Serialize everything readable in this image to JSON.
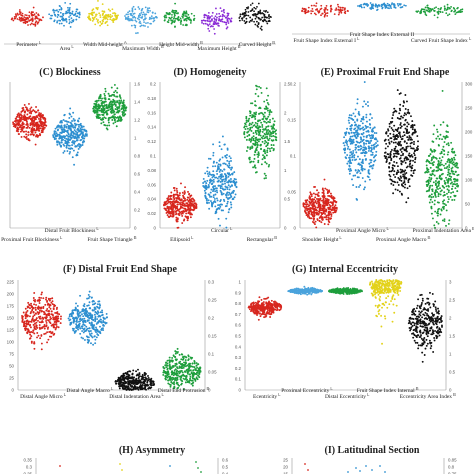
{
  "colors": {
    "red": "#d7261e",
    "blue": "#2d8fd0",
    "green": "#1e9e3c",
    "black": "#111111",
    "yellow": "#e3d21a",
    "purple": "#8a2bd6",
    "lightblue": "#4aa3dc"
  },
  "chart_data": [
    {
      "type": "scatter",
      "panel": "A",
      "title": "",
      "categories": [
        "Perimeter",
        "Area",
        "Width Mid-height",
        "Maximum Width",
        "Height Mid-width",
        "Maximum Height",
        "Curved Height"
      ],
      "category_marks": [
        "L",
        "L",
        "A",
        "B",
        "B",
        "B",
        "B"
      ],
      "colors": [
        "red",
        "blue",
        "yellow",
        "lightblue",
        "green",
        "purple",
        "black"
      ],
      "center": [
        0.55,
        0.62,
        0.6,
        0.58,
        0.55,
        0.5,
        0.56
      ],
      "spread": [
        0.18,
        0.22,
        0.18,
        0.22,
        0.2,
        0.22,
        0.24
      ],
      "ylim": [
        0,
        1
      ]
    },
    {
      "type": "scatter",
      "panel": "B",
      "title": "",
      "categories": [
        "Fruit Shape Index External I",
        "Fruit Shape Index External II",
        "Curved Fruit Shape Index"
      ],
      "category_marks": [
        "L",
        "",
        "L"
      ],
      "colors": [
        "red",
        "blue",
        "green"
      ],
      "center": [
        0.65,
        0.8,
        0.65
      ],
      "spread": [
        0.18,
        0.1,
        0.15
      ],
      "ylim": [
        0,
        1
      ]
    },
    {
      "type": "scatter",
      "panel": "C",
      "title": "(C) Blockiness",
      "categories": [
        "Proximal Fruit Blockiness",
        "Distal Fruit Blockiness",
        "Fruit Shape Triangle"
      ],
      "category_marks": [
        "L",
        "L",
        "B"
      ],
      "colors": [
        "red",
        "blue",
        "green"
      ],
      "center": [
        0.72,
        0.64,
        0.82
      ],
      "spread": [
        0.09,
        0.1,
        0.1
      ],
      "ylim": [
        0,
        1.0
      ],
      "ylim2": [
        0,
        1.6
      ],
      "yticks": [
        "1",
        "0.8",
        "0.6",
        "0.4",
        "0.2",
        "0"
      ],
      "yticks2": [
        "1.6",
        "1.4",
        "1.2",
        "1",
        "0.8",
        "0.6",
        "0.4",
        "0.2",
        "0"
      ]
    },
    {
      "type": "scatter",
      "panel": "D",
      "title": "(D) Homogeneity",
      "categories": [
        "Ellipsoid",
        "Circular",
        "Rectangular"
      ],
      "category_marks": [
        "L",
        "L",
        "B"
      ],
      "colors": [
        "red",
        "blue",
        "green"
      ],
      "center": [
        0.03,
        0.06,
        0.13
      ],
      "spread": [
        0.018,
        0.04,
        0.04
      ],
      "ylim": [
        0,
        0.2
      ],
      "ylim2": [
        0,
        2.5
      ],
      "yticks": [
        "0.2",
        "0.18",
        "0.16",
        "0.14",
        "0.12",
        "0.1",
        "0.08",
        "0.06",
        "0.04",
        "0.02",
        "0"
      ],
      "yticks2": [
        "2.5",
        "2",
        "1.5",
        "1",
        "0.5",
        "0"
      ]
    },
    {
      "type": "scatter",
      "panel": "E",
      "title": "(E) Proximal Fruit End Shape",
      "categories": [
        "Shoulder Height",
        "Proximal Angle Micro",
        "Proximal Angle Macro",
        "Proximal Indentation Area"
      ],
      "category_marks": [
        "L",
        "L",
        "B",
        "B"
      ],
      "colors": [
        "red",
        "blue",
        "black",
        "green"
      ],
      "center": [
        0.03,
        0.115,
        0.11,
        0.07
      ],
      "spread": [
        0.02,
        0.045,
        0.05,
        0.05
      ],
      "ylim": [
        0,
        0.2
      ],
      "yticks": [
        "0.2",
        "0.15",
        "0.1",
        "0.05",
        "0"
      ],
      "yticks2": [
        "300",
        "250",
        "200",
        "150",
        "100",
        "50",
        "0"
      ]
    },
    {
      "type": "scatter",
      "panel": "F",
      "title": "(F) Distal Fruit End Shape",
      "categories": [
        "Distal Angle Micro",
        "Distal Angle Macro",
        "Distal Indentation Area",
        "Distal End Protrusion"
      ],
      "category_marks": [
        "L",
        "L",
        "L",
        "B"
      ],
      "colors": [
        "red",
        "blue",
        "black",
        "green"
      ],
      "center": [
        145,
        145,
        15,
        38
      ],
      "spread": [
        40,
        35,
        18,
        30
      ],
      "ylim": [
        0,
        225
      ],
      "yticks": [
        "225",
        "200",
        "175",
        "150",
        "125",
        "100",
        "75",
        "50",
        "25",
        "0"
      ],
      "yticks2": [
        "0.3",
        "0.25",
        "0.2",
        "0.15",
        "0.1",
        "0.05",
        "0"
      ]
    },
    {
      "type": "scatter",
      "panel": "G",
      "title": "(G) Internal Eccentricity",
      "categories": [
        "Ecentricity",
        "Proximal Eccentricity",
        "Distal Eccentricity",
        "Fruit Shape Index Internal",
        "Eccentricity Area Index"
      ],
      "category_marks": [
        "L",
        "L",
        "L",
        "B",
        "B"
      ],
      "colors": [
        "red",
        "lightblue",
        "green",
        "yellow",
        "black"
      ],
      "center": [
        0.75,
        0.9,
        0.9,
        1.1,
        0.6
      ],
      "spread": [
        0.06,
        0.02,
        0.02,
        0.4,
        0.2
      ],
      "ylim": [
        0,
        1
      ],
      "yticks": [
        "1",
        "0.9",
        "0.8",
        "0.7",
        "0.6",
        "0.5",
        "0.4",
        "0.3",
        "0.2",
        "0.1",
        "0"
      ],
      "yticks2": [
        "3",
        "2.5",
        "2",
        "1.5",
        "1",
        "0.5",
        "0"
      ]
    },
    {
      "type": "scatter",
      "panel": "H",
      "title": "(H) Asymmetry",
      "categories": [],
      "yticks": [
        "0.35",
        "0.3",
        "0.25"
      ],
      "yticks2": [
        "0.6",
        "0.5",
        "0.4"
      ],
      "ylim": [
        0.22,
        0.36
      ]
    },
    {
      "type": "scatter",
      "panel": "I",
      "title": "(I) Latitudinal Section",
      "categories": [],
      "yticks": [
        "25",
        "20",
        "15"
      ],
      "yticks2": [
        "0.85",
        "0.8",
        "0.75"
      ],
      "ylim": [
        12,
        26
      ]
    }
  ]
}
